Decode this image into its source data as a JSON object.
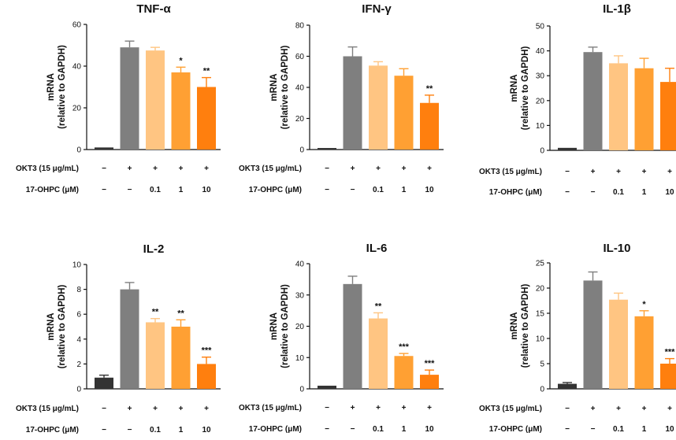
{
  "palette": [
    "#333333",
    "#7f7f7f",
    "#ffc582",
    "#ffa033",
    "#ff7f0e"
  ],
  "row_labels": {
    "okt3": "OKT3 (15 μg/mL)",
    "ohpc": "17-OHPC (μM)"
  },
  "ylabel_lines": [
    "mRNA",
    "(relative to GAPDH)"
  ],
  "groups": [
    {
      "okt3": "−",
      "ohpc": "−"
    },
    {
      "okt3": "+",
      "ohpc": "−"
    },
    {
      "okt3": "+",
      "ohpc": "0.1"
    },
    {
      "okt3": "+",
      "ohpc": "1"
    },
    {
      "okt3": "+",
      "ohpc": "10"
    }
  ],
  "chart_data": [
    {
      "type": "bar",
      "title": "TNF-α",
      "ylim": [
        0,
        60
      ],
      "yticks": [
        0,
        20,
        40,
        60
      ],
      "values": [
        1,
        49,
        47.5,
        37,
        30
      ],
      "errors": [
        0,
        3,
        1.5,
        2.5,
        4.5
      ],
      "significance": [
        "",
        "",
        "",
        "*",
        "**"
      ]
    },
    {
      "type": "bar",
      "title": "IFN-γ",
      "ylim": [
        0,
        80
      ],
      "yticks": [
        0,
        20,
        40,
        60,
        80
      ],
      "values": [
        1,
        60,
        54,
        47.5,
        30
      ],
      "errors": [
        0,
        6,
        2.5,
        4.5,
        5
      ],
      "significance": [
        "",
        "",
        "",
        "",
        "**"
      ]
    },
    {
      "type": "bar",
      "title": "IL-1β",
      "ylim": [
        0,
        50
      ],
      "yticks": [
        0,
        10,
        20,
        30,
        40,
        50
      ],
      "values": [
        1,
        39.5,
        35,
        33,
        27.5
      ],
      "errors": [
        0,
        2,
        3,
        4,
        5.5
      ],
      "significance": [
        "",
        "",
        "",
        "",
        ""
      ]
    },
    {
      "type": "bar",
      "title": "IL-2",
      "ylim": [
        0,
        10
      ],
      "yticks": [
        0,
        2,
        4,
        6,
        8,
        10
      ],
      "values": [
        0.9,
        8,
        5.35,
        5,
        2
      ],
      "errors": [
        0.2,
        0.55,
        0.3,
        0.55,
        0.55
      ],
      "significance": [
        "",
        "",
        "**",
        "**",
        "***"
      ]
    },
    {
      "type": "bar",
      "title": "IL-6",
      "ylim": [
        0,
        40
      ],
      "yticks": [
        0,
        10,
        20,
        30,
        40
      ],
      "values": [
        1,
        33.5,
        22.5,
        10.5,
        4.5
      ],
      "errors": [
        0,
        2.5,
        1.8,
        0.8,
        1.5
      ],
      "significance": [
        "",
        "",
        "**",
        "***",
        "***"
      ]
    },
    {
      "type": "bar",
      "title": "IL-10",
      "ylim": [
        0,
        25
      ],
      "yticks": [
        0,
        5,
        10,
        15,
        20,
        25
      ],
      "values": [
        1,
        21.5,
        17.7,
        14.4,
        5
      ],
      "errors": [
        0.25,
        1.7,
        1.3,
        1.1,
        1
      ],
      "significance": [
        "",
        "",
        "",
        "*",
        "***"
      ]
    }
  ]
}
